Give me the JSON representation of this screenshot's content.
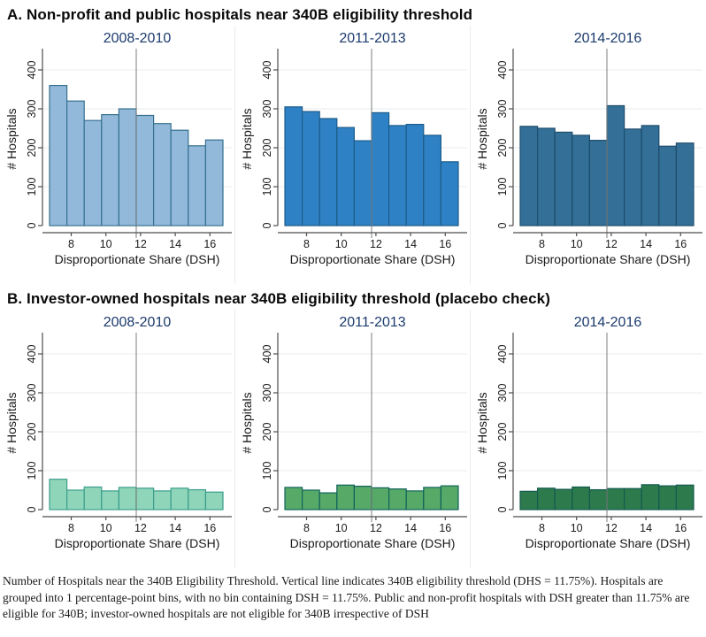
{
  "page": {
    "panel_a_title": "A. Non-profit and public hospitals near 340B eligibility threshold",
    "panel_b_title": "B. Investor-owned hospitals near 340B eligibility threshold (placebo check)",
    "caption": "Number of Hospitals near the 340B Eligibility Threshold. Vertical line indicates 340B eligibility threshold (DHS = 11.75%). Hospitals are grouped into 1 percentage-point bins, with no bin containing DSH = 11.75%. Public and non-profit hospitals with DSH greater than 11.75% are eligible for 340B; investor-owned hospitals are not eligible for 340B irrespective of DSH"
  },
  "style": {
    "grid": "#e7ebee",
    "axis": "#4d4d4d",
    "threshold": "#7d7d7d",
    "subtitle_color": "#1b3a6d"
  },
  "chart_data": [
    {
      "type": "bar",
      "panel": "A",
      "title": "2008-2010",
      "xlabel": "Disproportionate Share (DSH)",
      "ylabel": "# Hospitals",
      "bin_start": 6.75,
      "bin_width": 1,
      "threshold": 11.75,
      "xticks": [
        8,
        10,
        12,
        14,
        16
      ],
      "yticks": [
        0,
        100,
        200,
        300,
        400
      ],
      "ylim": [
        0,
        430
      ],
      "values": [
        360,
        320,
        270,
        285,
        300,
        283,
        262,
        245,
        205,
        220
      ],
      "fill": "#93b9da",
      "stroke": "#36708f"
    },
    {
      "type": "bar",
      "panel": "A",
      "title": "2011-2013",
      "xlabel": "Disproportionate Share (DSH)",
      "ylabel": "# Hospitals",
      "bin_start": 6.75,
      "bin_width": 1,
      "threshold": 11.75,
      "xticks": [
        8,
        10,
        12,
        14,
        16
      ],
      "yticks": [
        0,
        100,
        200,
        300,
        400
      ],
      "ylim": [
        0,
        430
      ],
      "values": [
        305,
        293,
        275,
        252,
        218,
        290,
        257,
        260,
        232,
        164
      ],
      "fill": "#2e81c4",
      "stroke": "#1d5c8a"
    },
    {
      "type": "bar",
      "panel": "A",
      "title": "2014-2016",
      "xlabel": "Disproportionate Share (DSH)",
      "ylabel": "# Hospitals",
      "bin_start": 6.75,
      "bin_width": 1,
      "threshold": 11.75,
      "xticks": [
        8,
        10,
        12,
        14,
        16
      ],
      "yticks": [
        0,
        100,
        200,
        300,
        400
      ],
      "ylim": [
        0,
        430
      ],
      "values": [
        255,
        250,
        240,
        232,
        219,
        308,
        248,
        257,
        204,
        212
      ],
      "fill": "#336f96",
      "stroke": "#1f4d6d"
    },
    {
      "type": "bar",
      "panel": "B",
      "title": "2008-2010",
      "xlabel": "Disproportionate Share (DSH)",
      "ylabel": "# Hospitals",
      "bin_start": 6.75,
      "bin_width": 1,
      "threshold": 11.75,
      "xticks": [
        8,
        10,
        12,
        14,
        16
      ],
      "yticks": [
        0,
        100,
        200,
        300,
        400
      ],
      "ylim": [
        0,
        430
      ],
      "values": [
        78,
        50,
        58,
        48,
        57,
        55,
        48,
        55,
        51,
        45
      ],
      "fill": "#8fd5ba",
      "stroke": "#3a9e8a"
    },
    {
      "type": "bar",
      "panel": "B",
      "title": "2011-2013",
      "xlabel": "Disproportionate Share (DSH)",
      "ylabel": "# Hospitals",
      "bin_start": 6.75,
      "bin_width": 1,
      "threshold": 11.75,
      "xticks": [
        8,
        10,
        12,
        14,
        16
      ],
      "yticks": [
        0,
        100,
        200,
        300,
        400
      ],
      "ylim": [
        0,
        430
      ],
      "values": [
        57,
        50,
        43,
        63,
        60,
        56,
        53,
        48,
        57,
        61
      ],
      "fill": "#57a968",
      "stroke": "#11635a"
    },
    {
      "type": "bar",
      "panel": "B",
      "title": "2014-2016",
      "xlabel": "Disproportionate Share (DSH)",
      "ylabel": "# Hospitals",
      "bin_start": 6.75,
      "bin_width": 1,
      "threshold": 11.75,
      "xticks": [
        8,
        10,
        12,
        14,
        16
      ],
      "yticks": [
        0,
        100,
        200,
        300,
        400
      ],
      "ylim": [
        0,
        430
      ],
      "values": [
        47,
        55,
        52,
        58,
        51,
        54,
        54,
        64,
        61,
        63
      ],
      "fill": "#2d7a4c",
      "stroke": "#145a50"
    }
  ]
}
